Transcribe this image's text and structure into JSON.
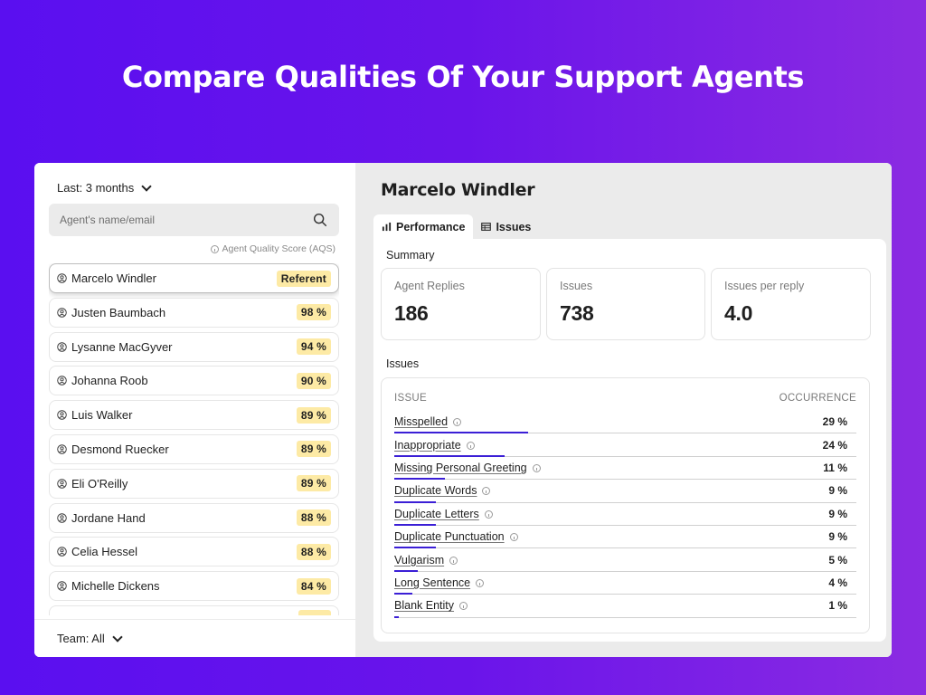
{
  "headline": "Compare Qualities Of Your Support Agents",
  "sidebar": {
    "period_label": "Last: 3 months",
    "search_placeholder": "Agent's name/email",
    "aqs_label": "Agent Quality Score (AQS)",
    "team_label": "Team: All",
    "agents": [
      {
        "name": "Marcelo Windler",
        "score": "Referent",
        "selected": true
      },
      {
        "name": "Justen Baumbach",
        "score": "98 %"
      },
      {
        "name": "Lysanne MacGyver",
        "score": "94 %"
      },
      {
        "name": "Johanna Roob",
        "score": "90 %"
      },
      {
        "name": "Luis Walker",
        "score": "89 %"
      },
      {
        "name": "Desmond Ruecker",
        "score": "89 %"
      },
      {
        "name": "Eli O'Reilly",
        "score": "89 %"
      },
      {
        "name": "Jordane Hand",
        "score": "88 %"
      },
      {
        "name": "Celia Hessel",
        "score": "88 %"
      },
      {
        "name": "Michelle Dickens",
        "score": "84 %"
      }
    ]
  },
  "main": {
    "agent_name": "Marcelo Windler",
    "tabs": [
      {
        "label": "Performance",
        "icon": "bar-chart-icon",
        "active": true
      },
      {
        "label": "Issues",
        "icon": "table-icon",
        "active": false
      }
    ],
    "summary_label": "Summary",
    "stats": [
      {
        "label": "Agent Replies",
        "value": "186"
      },
      {
        "label": "Issues",
        "value": "738"
      },
      {
        "label": "Issues per reply",
        "value": "4.0"
      }
    ],
    "issues_label": "Issues",
    "issues_table": {
      "col_issue": "ISSUE",
      "col_occurrence": "OCCURRENCE",
      "accent_color": "#3b1fd6",
      "rows": [
        {
          "name": "Misspelled",
          "pct": "29 %",
          "value": 29
        },
        {
          "name": "Inappropriate",
          "pct": "24 %",
          "value": 24
        },
        {
          "name": "Missing Personal Greeting",
          "pct": "11 %",
          "value": 11
        },
        {
          "name": "Duplicate Words",
          "pct": "9 %",
          "value": 9
        },
        {
          "name": "Duplicate Letters",
          "pct": "9 %",
          "value": 9
        },
        {
          "name": "Duplicate Punctuation",
          "pct": "9 %",
          "value": 9
        },
        {
          "name": "Vulgarism",
          "pct": "5 %",
          "value": 5
        },
        {
          "name": "Long Sentence",
          "pct": "4 %",
          "value": 4
        },
        {
          "name": "Blank Entity",
          "pct": "1 %",
          "value": 1
        }
      ]
    }
  }
}
